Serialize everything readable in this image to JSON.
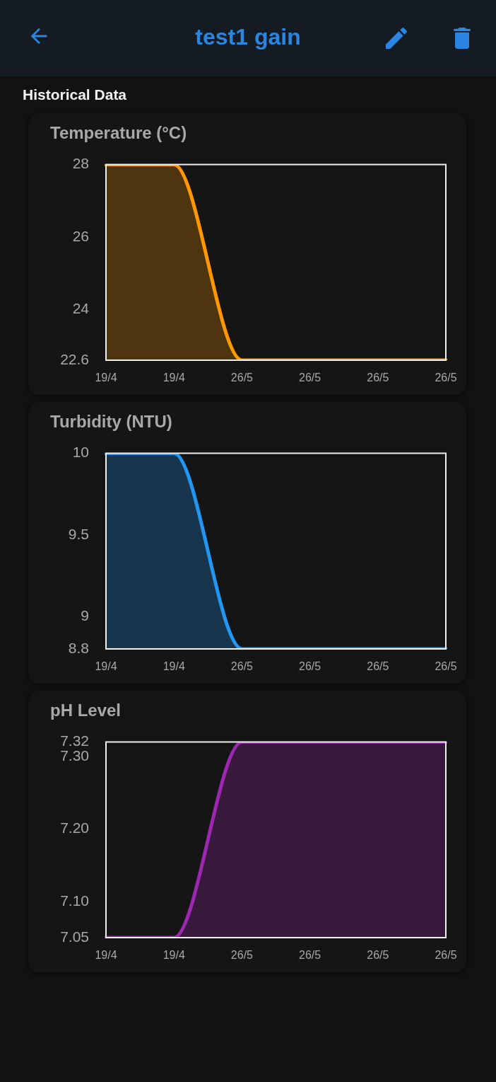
{
  "chart_data": [
    {
      "type": "other",
      "title": "test1 gain",
      "subtitle": "Historical Data"
    },
    {
      "type": "area",
      "title": "Temperature (°C)",
      "categories": [
        "19/4",
        "19/4",
        "26/5",
        "26/5",
        "26/5",
        "26/5"
      ],
      "values": [
        28,
        28,
        22.6,
        22.6,
        22.6,
        22.6
      ],
      "color": "#ff9800",
      "ylim": [
        22.6,
        28
      ],
      "yticks": [
        22.6,
        24,
        26,
        28
      ],
      "grid": false,
      "marker": "none"
    },
    {
      "type": "area",
      "title": "Turbidity (NTU)",
      "categories": [
        "19/4",
        "19/4",
        "26/5",
        "26/5",
        "26/5",
        "26/5"
      ],
      "values": [
        10,
        10,
        8.8,
        8.8,
        8.8,
        8.8
      ],
      "color": "#2196f3",
      "ylim": [
        8.8,
        10
      ],
      "yticks": [
        8.8,
        9,
        9.5,
        10
      ],
      "grid": false,
      "marker": "none"
    },
    {
      "type": "area",
      "title": "pH Level",
      "categories": [
        "19/4",
        "19/4",
        "26/5",
        "26/5",
        "26/5",
        "26/5"
      ],
      "values": [
        7.05,
        7.05,
        7.32,
        7.32,
        7.32,
        7.32
      ],
      "color": "#9c27b0",
      "ylim": [
        7.05,
        7.32
      ],
      "yticks": [
        {
          "value": 7.05,
          "label": "7.05"
        },
        {
          "value": 7.1,
          "label": "7.10"
        },
        {
          "value": 7.2,
          "label": "7.20"
        },
        {
          "value": 7.3,
          "label": "7.30"
        },
        7.32
      ],
      "grid": false,
      "marker": "none"
    }
  ]
}
